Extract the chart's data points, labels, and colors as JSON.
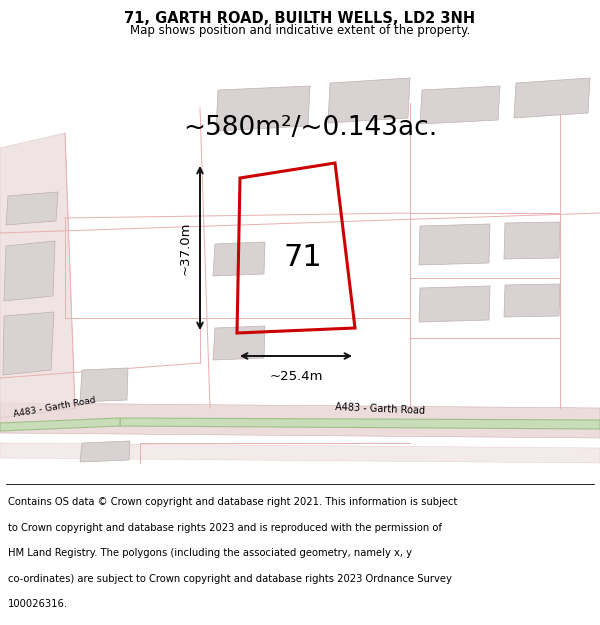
{
  "title": "71, GARTH ROAD, BUILTH WELLS, LD2 3NH",
  "subtitle": "Map shows position and indicative extent of the property.",
  "area_label": "~580m²/~0.143ac.",
  "plot_number": "71",
  "width_label": "~25.4m",
  "height_label": "~37.0m",
  "road_label": "A483 - Garth Road",
  "road_label_short": "A483 - Garth Road",
  "footer_text_line1": "Contains OS data © Crown copyright and database right 2021. This information is subject",
  "footer_text_line2": "to Crown copyright and database rights 2023 and is reproduced with the permission of",
  "footer_text_line3": "HM Land Registry. The polygons (including the associated geometry, namely x, y",
  "footer_text_line4": "co-ordinates) are subject to Crown copyright and database rights 2023 Ordnance Survey",
  "footer_text_line5": "100026316.",
  "map_bg": "#f5efef",
  "road_fill": "#ecdcdc",
  "road_edge": "#d4b0b0",
  "road_green_fill": "#c8ddb8",
  "road_green_edge": "#a0bf88",
  "plot_color": "#cc0000",
  "building_fill": "#d8d2d2",
  "building_edge": "#c0b0b0",
  "pink_line": "#e8b0b0",
  "dim_color": "#111111",
  "title_fontsize": 10.5,
  "subtitle_fontsize": 8.5,
  "area_fontsize": 19,
  "plot_num_fontsize": 22,
  "dim_fontsize": 9.5,
  "road_fontsize": 7,
  "footer_fontsize": 7.2
}
